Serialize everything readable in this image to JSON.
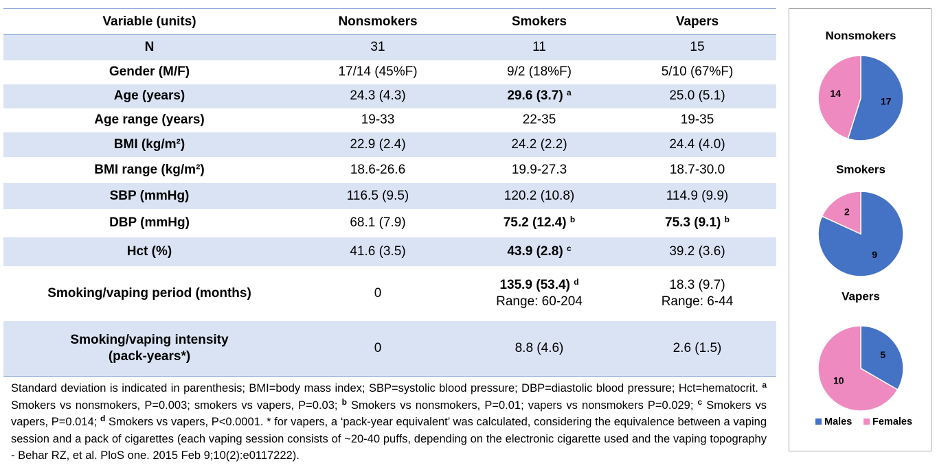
{
  "table": {
    "header": [
      "Variable (units)",
      "Nonsmokers",
      "Smokers",
      "Vapers"
    ],
    "rows": [
      [
        "N",
        "31",
        "11",
        "15"
      ],
      [
        "Gender (M/F)",
        "17/14 (45%F)",
        "9/2 (18%F)",
        "5/10 (67%F)"
      ],
      [
        "Age (years)",
        "24.3 (4.3)",
        {
          "text": "29.6 (3.7)",
          "sup": "a",
          "bold": true
        },
        "25.0 (5.1)"
      ],
      [
        "Age range (years)",
        "19-33",
        "22-35",
        "19-35"
      ],
      [
        "BMI (kg/m²)",
        "22.9 (2.4)",
        "24.2 (2.2)",
        "24.4 (4.0)"
      ],
      [
        "BMI range (kg/m²)",
        "18.6-26.6",
        "19.9-27.3",
        "18.7-30.0"
      ],
      [
        "SBP (mmHg)",
        "116.5 (9.5)",
        "120.2 (10.8)",
        "114.9 (9.9)"
      ],
      [
        "DBP (mmHg)",
        "68.1 (7.9)",
        {
          "text": "75.2 (12.4)",
          "sup": "b",
          "bold": true
        },
        {
          "text": "75.3 (9.1)",
          "sup": "b",
          "bold": true
        }
      ],
      [
        "Hct (%)",
        "41.6 (3.5)",
        {
          "text": "43.9 (2.8)",
          "sup": "c",
          "bold": true
        },
        "39.2 (3.6)"
      ],
      [
        "Smoking/vaping period (months)",
        "0",
        {
          "text": "135.9 (53.4)",
          "sup": "d",
          "bold": true,
          "line2": "Range: 60-204"
        },
        {
          "text": "18.3 (9.7)",
          "line2": "Range: 6-44"
        }
      ],
      [
        {
          "text": "Smoking/vaping intensity",
          "line2": "(pack-years*)"
        },
        "0",
        "8.8 (4.6)",
        "2.6 (1.5)"
      ]
    ]
  },
  "footnote": [
    "Standard deviation is indicated in parenthesis; BMI=body mass index; SBP=systolic blood pressure; DBP=diastolic blood pressure; Hct=hematocrit. ",
    {
      "sup": "a"
    },
    " Smokers vs nonsmokers, P=0.003; smokers vs vapers, P=0.03; ",
    {
      "sup": "b"
    },
    " Smokers vs nonsmokers, P=0.01; vapers vs nonsmokers P=0.029; ",
    {
      "sup": "c"
    },
    " Smokers vs vapers, P=0.014; ",
    {
      "sup": "d"
    },
    " Smokers vs vapers, P<0.0001. * for vapers, a ‘pack-year equivalent’ was calculated, considering the equivalence between a vaping session and a pack of cigarettes (each vaping session consists of ~20-40 puffs, depending on the electronic cigarette used and the vaping topography - Behar RZ, et al. PloS one. 2015 Feb 9;10(2):e0117222)."
  ],
  "pie_legend": {
    "labels": [
      "Males",
      "Females"
    ],
    "colors": [
      "#4472c4",
      "#ee8ac0"
    ]
  },
  "chart_data": [
    {
      "type": "pie",
      "title": "Nonsmokers",
      "values": [
        17,
        14
      ]
    },
    {
      "type": "pie",
      "title": "Smokers",
      "values": [
        9,
        2
      ]
    },
    {
      "type": "pie",
      "title": "Vapers",
      "values": [
        5,
        10
      ]
    }
  ]
}
